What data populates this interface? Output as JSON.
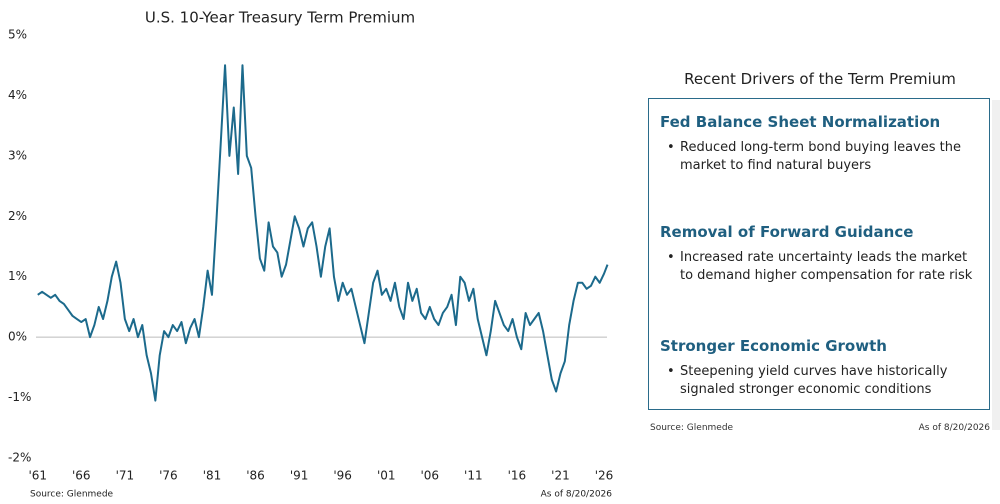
{
  "chart_data": {
    "type": "line",
    "title": "U.S. 10-Year Treasury Term Premium",
    "color": "#1c6a8c",
    "x": [
      1961,
      1961.5,
      1962,
      1962.5,
      1963,
      1963.5,
      1964,
      1964.5,
      1965,
      1965.5,
      1966,
      1966.5,
      1967,
      1967.5,
      1968,
      1968.5,
      1969,
      1969.5,
      1970,
      1970.5,
      1971,
      1971.5,
      1972,
      1972.5,
      1973,
      1973.5,
      1974,
      1974.5,
      1975,
      1975.5,
      1976,
      1976.5,
      1977,
      1977.5,
      1978,
      1978.5,
      1979,
      1979.5,
      1980,
      1980.5,
      1981,
      1981.5,
      1982,
      1982.5,
      1983,
      1983.5,
      1984,
      1984.5,
      1985,
      1985.5,
      1986,
      1986.5,
      1987,
      1987.5,
      1988,
      1988.5,
      1989,
      1989.5,
      1990,
      1990.5,
      1991,
      1991.5,
      1992,
      1992.5,
      1993,
      1993.5,
      1994,
      1994.5,
      1995,
      1995.5,
      1996,
      1996.5,
      1997,
      1997.5,
      1998,
      1998.5,
      1999,
      1999.5,
      2000,
      2000.5,
      2001,
      2001.5,
      2002,
      2002.5,
      2003,
      2003.5,
      2004,
      2004.5,
      2005,
      2005.5,
      2006,
      2006.5,
      2007,
      2007.5,
      2008,
      2008.5,
      2009,
      2009.5,
      2010,
      2010.5,
      2011,
      2011.5,
      2012,
      2012.5,
      2013,
      2013.5,
      2014,
      2014.5,
      2015,
      2015.5,
      2016,
      2016.5,
      2017,
      2017.5,
      2018,
      2018.5,
      2019,
      2019.5,
      2020,
      2020.5,
      2021,
      2021.5,
      2022,
      2022.5,
      2023,
      2023.5,
      2024,
      2024.5,
      2025,
      2025.5,
      2026,
      2026.4
    ],
    "values": [
      0.7,
      0.75,
      0.7,
      0.65,
      0.7,
      0.6,
      0.55,
      0.45,
      0.35,
      0.3,
      0.25,
      0.3,
      0.0,
      0.2,
      0.5,
      0.3,
      0.6,
      1.0,
      1.25,
      0.9,
      0.3,
      0.1,
      0.3,
      0.0,
      0.2,
      -0.3,
      -0.6,
      -1.05,
      -0.3,
      0.1,
      0.0,
      0.2,
      0.1,
      0.25,
      -0.1,
      0.15,
      0.3,
      0.0,
      0.5,
      1.1,
      0.7,
      1.9,
      3.2,
      4.5,
      3.0,
      3.8,
      2.7,
      4.5,
      3.0,
      2.8,
      2.0,
      1.3,
      1.1,
      1.9,
      1.5,
      1.4,
      1.0,
      1.2,
      1.6,
      2.0,
      1.8,
      1.5,
      1.8,
      1.9,
      1.5,
      1.0,
      1.5,
      1.8,
      1.0,
      0.6,
      0.9,
      0.7,
      0.8,
      0.5,
      0.2,
      -0.1,
      0.4,
      0.9,
      1.1,
      0.7,
      0.8,
      0.6,
      0.9,
      0.5,
      0.3,
      0.9,
      0.6,
      0.8,
      0.4,
      0.3,
      0.5,
      0.3,
      0.2,
      0.4,
      0.5,
      0.7,
      0.2,
      1.0,
      0.9,
      0.6,
      0.8,
      0.3,
      0.0,
      -0.3,
      0.1,
      0.6,
      0.4,
      0.2,
      0.1,
      0.3,
      0.0,
      -0.2,
      0.4,
      0.2,
      0.3,
      0.4,
      0.1,
      -0.3,
      -0.7,
      -0.9,
      -0.6,
      -0.4,
      0.2,
      0.6,
      0.9,
      0.9,
      0.8,
      0.85,
      1.0,
      0.9,
      1.05,
      1.2
    ],
    "xlim": [
      1960.8,
      2026.8
    ],
    "xticks": [
      {
        "value": 1961,
        "label": "'61"
      },
      {
        "value": 1966,
        "label": "'66"
      },
      {
        "value": 1971,
        "label": "'71"
      },
      {
        "value": 1976,
        "label": "'76"
      },
      {
        "value": 1981,
        "label": "'81"
      },
      {
        "value": 1986,
        "label": "'86"
      },
      {
        "value": 1991,
        "label": "'91"
      },
      {
        "value": 1996,
        "label": "'96"
      },
      {
        "value": 2001,
        "label": "'01"
      },
      {
        "value": 2006,
        "label": "'06"
      },
      {
        "value": 2011,
        "label": "'11"
      },
      {
        "value": 2016,
        "label": "'16"
      },
      {
        "value": 2021,
        "label": "'21"
      },
      {
        "value": 2026,
        "label": "'26"
      }
    ],
    "ylim": [
      -2,
      5
    ],
    "yticks": [
      {
        "value": 5,
        "label": "5%"
      },
      {
        "value": 4,
        "label": "4%"
      },
      {
        "value": 3,
        "label": "3%"
      },
      {
        "value": 2,
        "label": "2%"
      },
      {
        "value": 1,
        "label": "1%"
      },
      {
        "value": 0,
        "label": "0%"
      },
      {
        "value": -1,
        "label": "-1%"
      },
      {
        "value": -2,
        "label": "-2%"
      }
    ],
    "source": "Source: Glenmede",
    "as_of": "As of 8/20/2026"
  },
  "panel": {
    "title": "Recent Drivers of the Term Premium",
    "items": [
      {
        "heading": "Fed Balance Sheet Normalization",
        "text": "Reduced long-term bond buying leaves the market to find natural buyers"
      },
      {
        "heading": "Removal of Forward Guidance",
        "text": "Increased rate uncertainty leads the market to demand higher compensation for rate risk"
      },
      {
        "heading": "Stronger Economic Growth",
        "text": "Steepening yield curves have historically signaled stronger economic conditions"
      }
    ],
    "source": "Source: Glenmede",
    "as_of": "As of 8/20/2026"
  }
}
